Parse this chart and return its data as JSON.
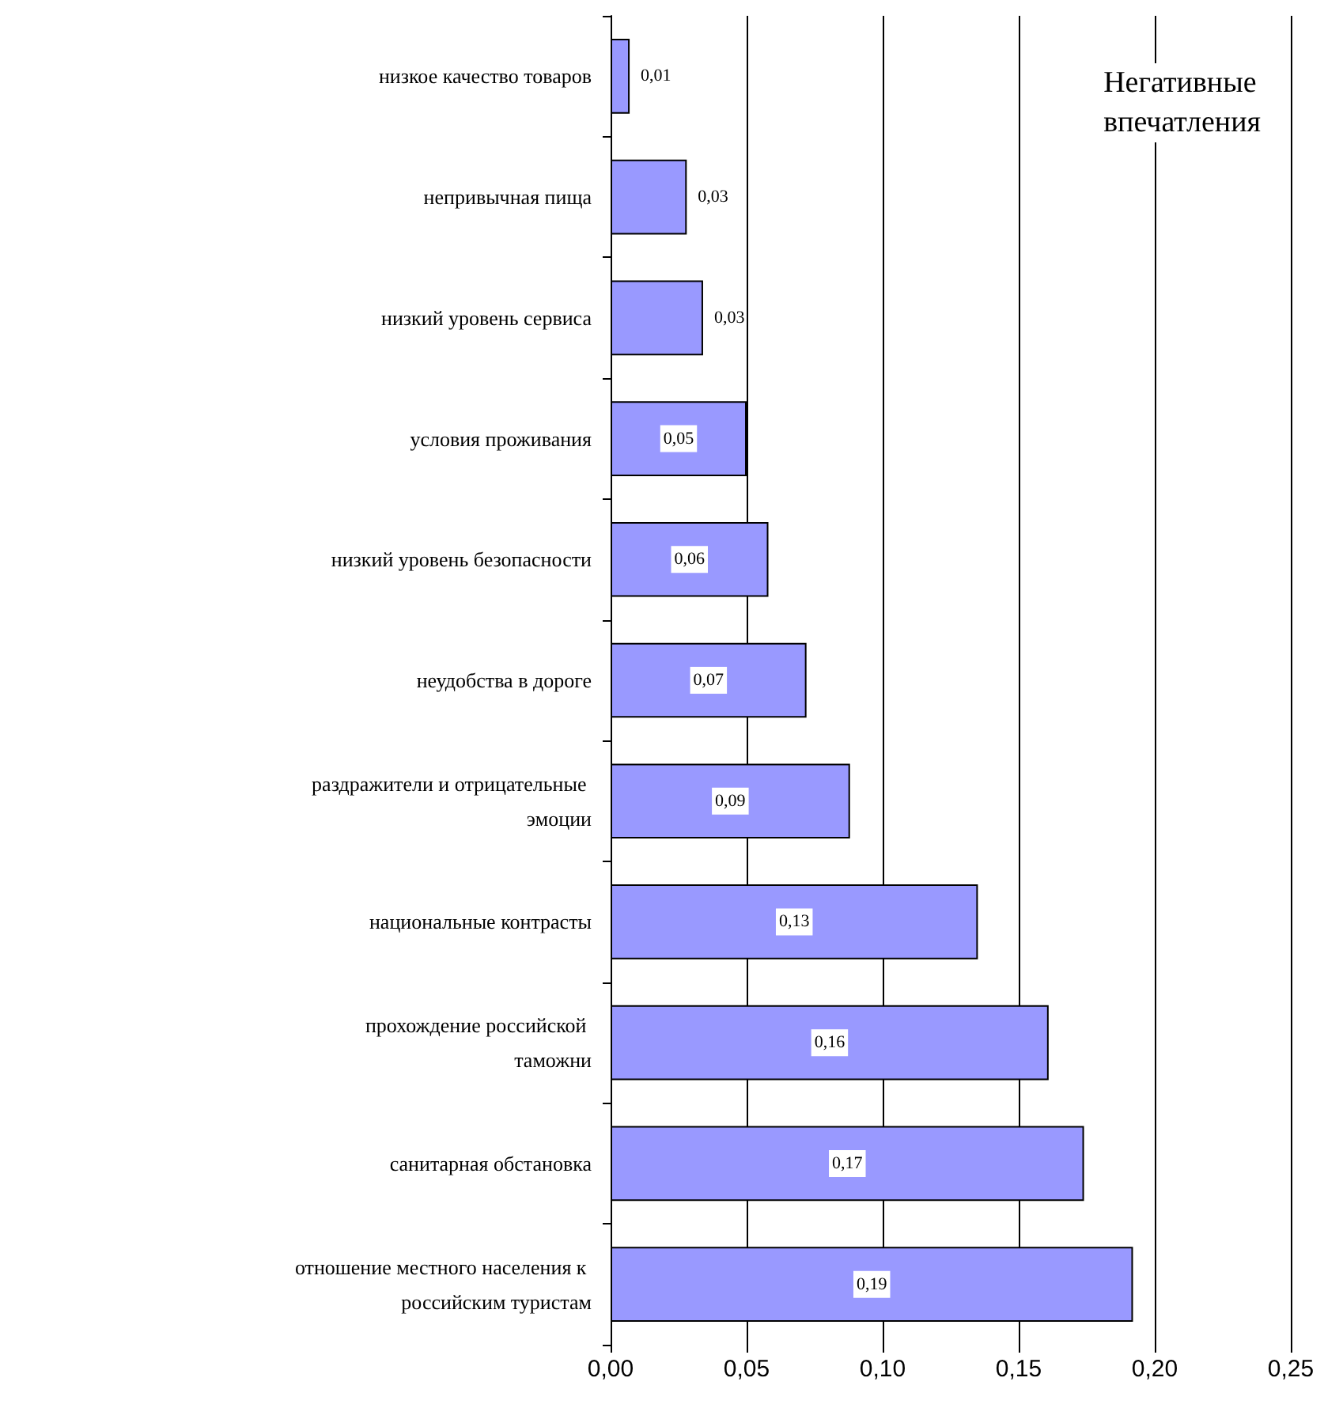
{
  "chart_data": {
    "type": "bar",
    "orientation": "horizontal",
    "categories": [
      "низкое качество товаров",
      "непривычная пища",
      "низкий уровень сервиса",
      "условия проживания",
      "низкий уровень безопасности",
      "неудобства в дороге",
      "раздражители и отрицательные эмоции",
      "национальные контрасты",
      "прохождение российской таможни",
      "санитарная обстановка",
      "отношение местного населения к российским туристам"
    ],
    "values": [
      0.007,
      0.028,
      0.034,
      0.05,
      0.058,
      0.072,
      0.088,
      0.135,
      0.161,
      0.174,
      0.192
    ],
    "value_labels": [
      "0,01",
      "0,03",
      "0,03",
      "0,05",
      "0,06",
      "0,07",
      "0,09",
      "0,13",
      "0,16",
      "0,17",
      "0,19"
    ],
    "color": "#9999ff",
    "xlim": [
      0,
      0.25
    ],
    "xticks": [
      {
        "value": 0,
        "label": "0,00"
      },
      {
        "value": 0.05,
        "label": "0,05"
      },
      {
        "value": 0.1,
        "label": "0,10"
      },
      {
        "value": 0.15,
        "label": "0,15"
      },
      {
        "value": 0.2,
        "label": "0,20"
      },
      {
        "value": 0.25,
        "label": "0,25"
      }
    ],
    "grid": "x",
    "annotations": [
      "Негативные впечатления"
    ]
  }
}
